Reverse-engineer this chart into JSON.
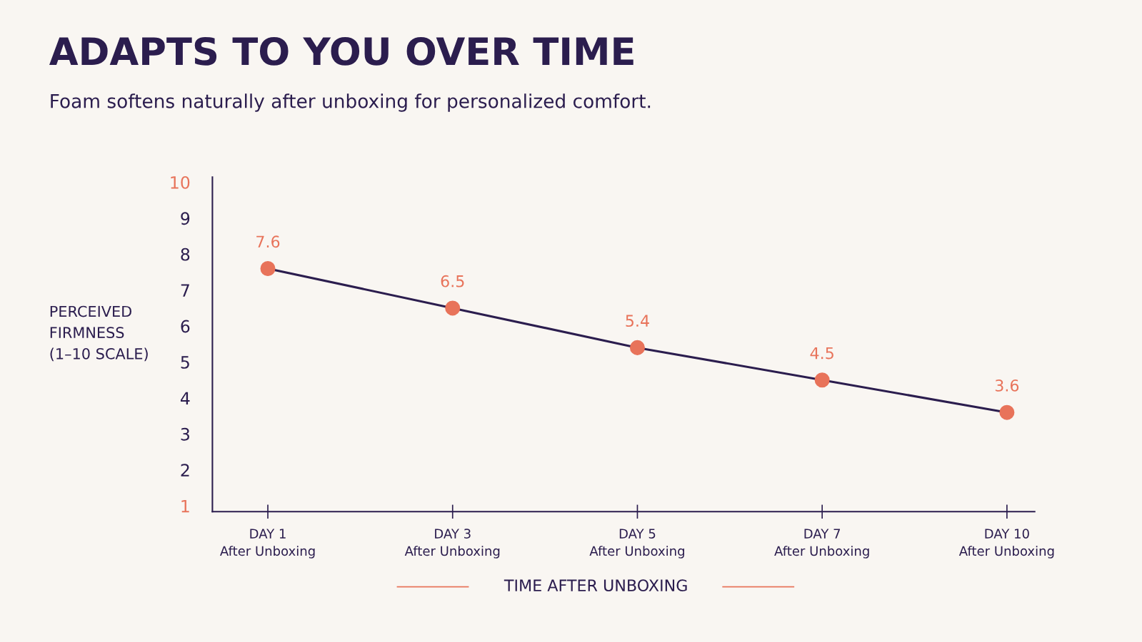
{
  "chart_data": {
    "type": "line",
    "title": "ADAPTS TO YOU OVER TIME",
    "subtitle": "Foam softens naturally after unboxing for personalized comfort.",
    "xlabel": "TIME AFTER UNBOXING",
    "ylabel": "PERCEIVED\nFIRMNESS\n(1–10 SCALE)",
    "categories": [
      "DAY 1\nAfter Unboxing",
      "DAY 3\nAfter Unboxing",
      "DAY 5\nAfter Unboxing",
      "DAY 7\nAfter Unboxing",
      "DAY 10\nAfter Unboxing"
    ],
    "series": [
      {
        "color": "#2b1d4e",
        "colors": [
          "#e8735a",
          "#e8735a",
          "#e8735a",
          "#e8735a",
          "#e8735a"
        ],
        "values": [
          7.6,
          6.5,
          5.4,
          4.5,
          3.6
        ]
      }
    ],
    "marker": "circle",
    "data_labels": true,
    "ylim": [
      0.84,
      10.14
    ],
    "yticks": [
      1,
      2,
      3,
      4,
      5,
      6,
      7,
      8,
      9,
      10
    ],
    "grid": false,
    "legend": false
  }
}
